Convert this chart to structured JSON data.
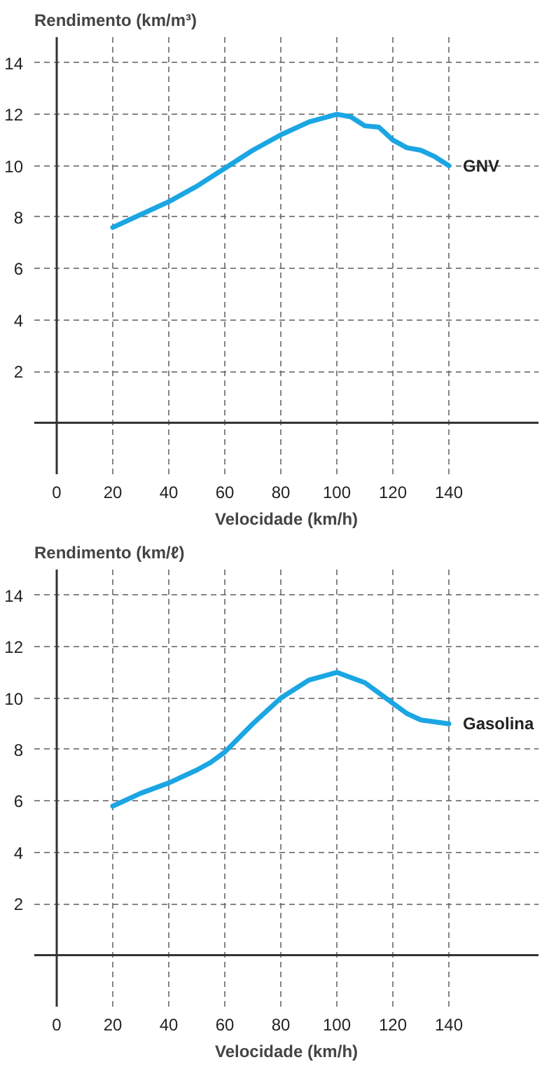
{
  "chart_data": [
    {
      "type": "line",
      "ylabel": "Rendimento (km/m³)",
      "xlabel": "Velocidade (km/h)",
      "x": [
        20,
        30,
        40,
        50,
        60,
        70,
        80,
        90,
        100,
        105,
        110,
        115,
        120,
        125,
        130,
        135,
        140
      ],
      "series": [
        {
          "name": "GNV",
          "color": "#1ba6e3",
          "values": [
            7.6,
            8.1,
            8.6,
            9.2,
            9.9,
            10.6,
            11.2,
            11.7,
            12.0,
            11.9,
            11.55,
            11.5,
            11.0,
            10.7,
            10.6,
            10.35,
            10.0
          ]
        }
      ],
      "xlim": [
        -8,
        172
      ],
      "ylim": [
        -2,
        15
      ],
      "xticks": [
        0,
        20,
        40,
        60,
        80,
        100,
        120,
        140
      ],
      "yticks": [
        2,
        4,
        6,
        8,
        10,
        12,
        14
      ],
      "grid": true,
      "line_style": "solid"
    },
    {
      "type": "line",
      "ylabel": "Rendimento (km/ℓ)",
      "xlabel": "Velocidade (km/h)",
      "x": [
        20,
        30,
        40,
        50,
        55,
        60,
        70,
        80,
        90,
        100,
        110,
        120,
        125,
        130,
        140
      ],
      "series": [
        {
          "name": "Gasolina",
          "color": "#1ba6e3",
          "values": [
            5.8,
            6.3,
            6.7,
            7.2,
            7.5,
            7.9,
            9.0,
            10.0,
            10.7,
            11.0,
            10.6,
            9.8,
            9.4,
            9.15,
            9.0
          ]
        }
      ],
      "xlim": [
        -8,
        172
      ],
      "ylim": [
        -2,
        15
      ],
      "xticks": [
        0,
        20,
        40,
        60,
        80,
        100,
        120,
        140
      ],
      "yticks": [
        2,
        4,
        6,
        8,
        10,
        12,
        14
      ],
      "grid": true,
      "line_style": "solid"
    }
  ]
}
